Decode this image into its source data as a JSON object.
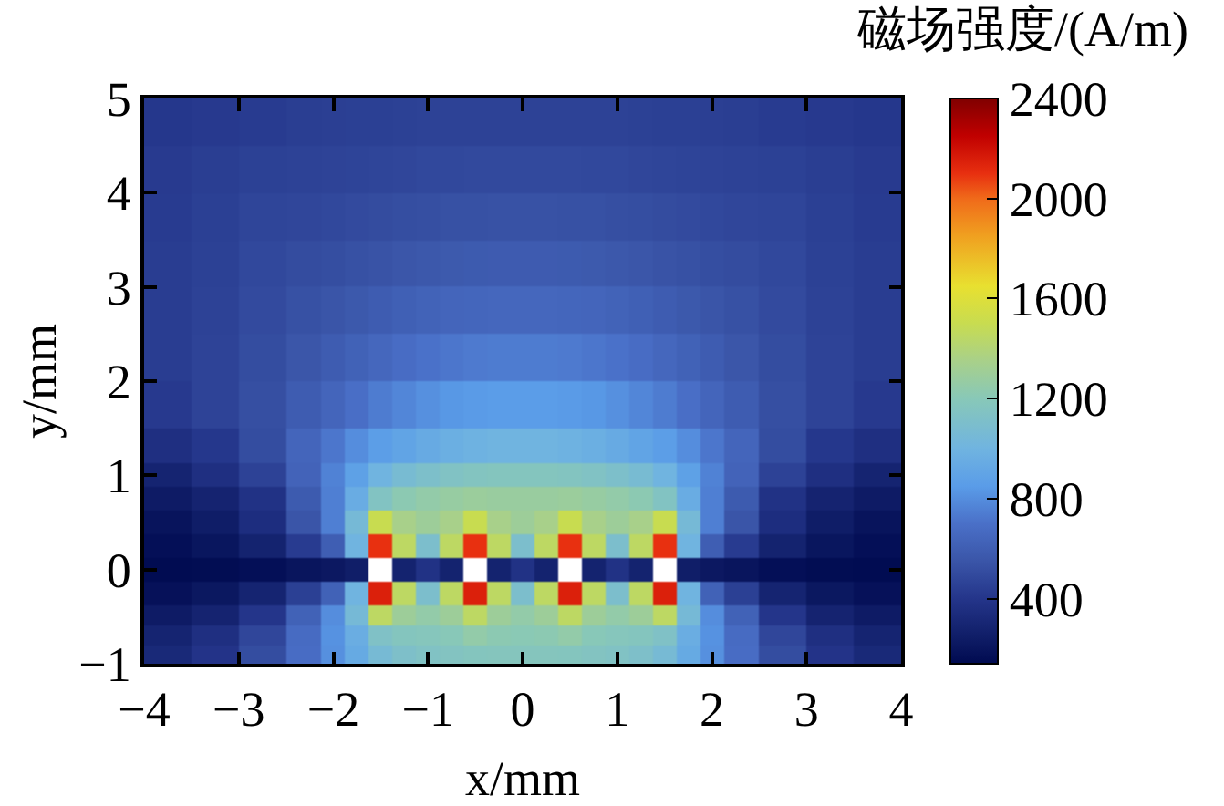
{
  "chart_data": {
    "type": "heatmap",
    "xlabel": "x/mm",
    "ylabel": "y/mm",
    "clabel": "磁场强度/(A/m)",
    "x": [
      -3.75,
      -3.25,
      -2.75,
      -2.25,
      -2,
      -1.75,
      -1.5,
      -1.25,
      -1,
      -0.75,
      -0.5,
      -0.25,
      0,
      0.25,
      0.5,
      0.75,
      1,
      1.25,
      1.5,
      1.75,
      2,
      2.25,
      2.75,
      3.25,
      3.75
    ],
    "y": [
      4.75,
      4.25,
      3.75,
      3.25,
      2.75,
      2.25,
      1.75,
      1.25,
      1,
      0.75,
      0.5,
      0.25,
      0,
      -0.25,
      -0.5,
      -0.7,
      -0.9
    ],
    "cells": [
      [
        410,
        420,
        430,
        440,
        445,
        450,
        450,
        455,
        460,
        460,
        460,
        460,
        460,
        460,
        460,
        460,
        460,
        455,
        450,
        450,
        445,
        440,
        430,
        420,
        410
      ],
      [
        425,
        440,
        455,
        460,
        465,
        470,
        475,
        480,
        490,
        490,
        495,
        495,
        495,
        495,
        495,
        490,
        490,
        480,
        475,
        470,
        465,
        460,
        455,
        440,
        425
      ],
      [
        430,
        450,
        475,
        480,
        490,
        500,
        505,
        515,
        520,
        530,
        530,
        535,
        535,
        535,
        530,
        530,
        520,
        515,
        505,
        500,
        490,
        480,
        475,
        450,
        430
      ],
      [
        435,
        455,
        490,
        505,
        515,
        530,
        540,
        555,
        565,
        575,
        580,
        585,
        585,
        585,
        580,
        575,
        565,
        555,
        540,
        530,
        515,
        505,
        490,
        455,
        435
      ],
      [
        435,
        460,
        500,
        530,
        550,
        570,
        590,
        610,
        625,
        640,
        645,
        650,
        650,
        650,
        645,
        640,
        625,
        610,
        590,
        570,
        550,
        530,
        500,
        460,
        435
      ],
      [
        435,
        465,
        510,
        555,
        590,
        620,
        650,
        680,
        705,
        720,
        735,
        740,
        740,
        740,
        735,
        720,
        705,
        680,
        650,
        620,
        590,
        555,
        510,
        465,
        435
      ],
      [
        420,
        465,
        520,
        590,
        640,
        690,
        740,
        775,
        810,
        835,
        845,
        855,
        855,
        855,
        845,
        835,
        810,
        775,
        740,
        690,
        640,
        590,
        520,
        465,
        420
      ],
      [
        360,
        410,
        510,
        640,
        720,
        800,
        860,
        900,
        940,
        970,
        990,
        1000,
        1000,
        1000,
        990,
        970,
        940,
        900,
        860,
        800,
        720,
        640,
        510,
        410,
        360
      ],
      [
        290,
        360,
        460,
        630,
        760,
        880,
        1000,
        1070,
        1110,
        1140,
        1160,
        1170,
        1170,
        1170,
        1160,
        1140,
        1110,
        1070,
        1000,
        880,
        760,
        630,
        460,
        360,
        290
      ],
      [
        235,
        285,
        380,
        580,
        750,
        950,
        1150,
        1220,
        1250,
        1270,
        1290,
        1280,
        1280,
        1280,
        1290,
        1270,
        1250,
        1220,
        1150,
        950,
        750,
        580,
        380,
        285,
        235
      ],
      [
        195,
        245,
        350,
        550,
        750,
        1050,
        1500,
        1350,
        1300,
        1350,
        1500,
        1350,
        1300,
        1350,
        1500,
        1350,
        1300,
        1350,
        1500,
        1050,
        750,
        550,
        350,
        245,
        195
      ],
      [
        170,
        205,
        280,
        430,
        600,
        1000,
        2100,
        1450,
        1100,
        1450,
        2100,
        1450,
        1100,
        1450,
        2100,
        1450,
        1100,
        1450,
        2100,
        1000,
        600,
        430,
        280,
        205,
        170
      ],
      [
        150,
        155,
        170,
        200,
        220,
        250,
        null,
        280,
        380,
        280,
        null,
        280,
        380,
        280,
        null,
        280,
        380,
        280,
        null,
        250,
        220,
        200,
        170,
        155,
        150
      ],
      [
        180,
        215,
        290,
        450,
        620,
        1000,
        2150,
        1450,
        1100,
        1450,
        2150,
        1450,
        1100,
        1450,
        2150,
        1450,
        1100,
        1450,
        2150,
        1000,
        620,
        450,
        290,
        215,
        180
      ],
      [
        235,
        285,
        400,
        620,
        800,
        1050,
        1450,
        1300,
        1250,
        1300,
        1450,
        1300,
        1250,
        1300,
        1450,
        1300,
        1250,
        1300,
        1450,
        1050,
        800,
        620,
        400,
        285,
        235
      ],
      [
        290,
        360,
        480,
        670,
        815,
        960,
        1130,
        1170,
        1180,
        1200,
        1250,
        1220,
        1210,
        1220,
        1250,
        1200,
        1180,
        1170,
        1130,
        960,
        815,
        670,
        480,
        360,
        290
      ],
      [
        320,
        390,
        510,
        680,
        810,
        935,
        1060,
        1115,
        1140,
        1155,
        1170,
        1175,
        1175,
        1175,
        1170,
        1155,
        1140,
        1115,
        1060,
        935,
        810,
        680,
        510,
        390,
        320
      ]
    ],
    "clim": [
      140,
      2400
    ],
    "cticks": [
      400,
      800,
      1200,
      1600,
      2000,
      2400
    ],
    "xlim": [
      -4,
      4
    ],
    "xticks": [
      {
        "value": -4,
        "label": "−4"
      },
      {
        "value": -3,
        "label": "−3"
      },
      {
        "value": -2,
        "label": "−2"
      },
      {
        "value": -1,
        "label": "−1"
      },
      0,
      1,
      2,
      3,
      4
    ],
    "ylim": [
      -1,
      5
    ],
    "yticks": [
      {
        "value": -1,
        "label": "−1"
      },
      0,
      1,
      2,
      3,
      4,
      5
    ]
  }
}
